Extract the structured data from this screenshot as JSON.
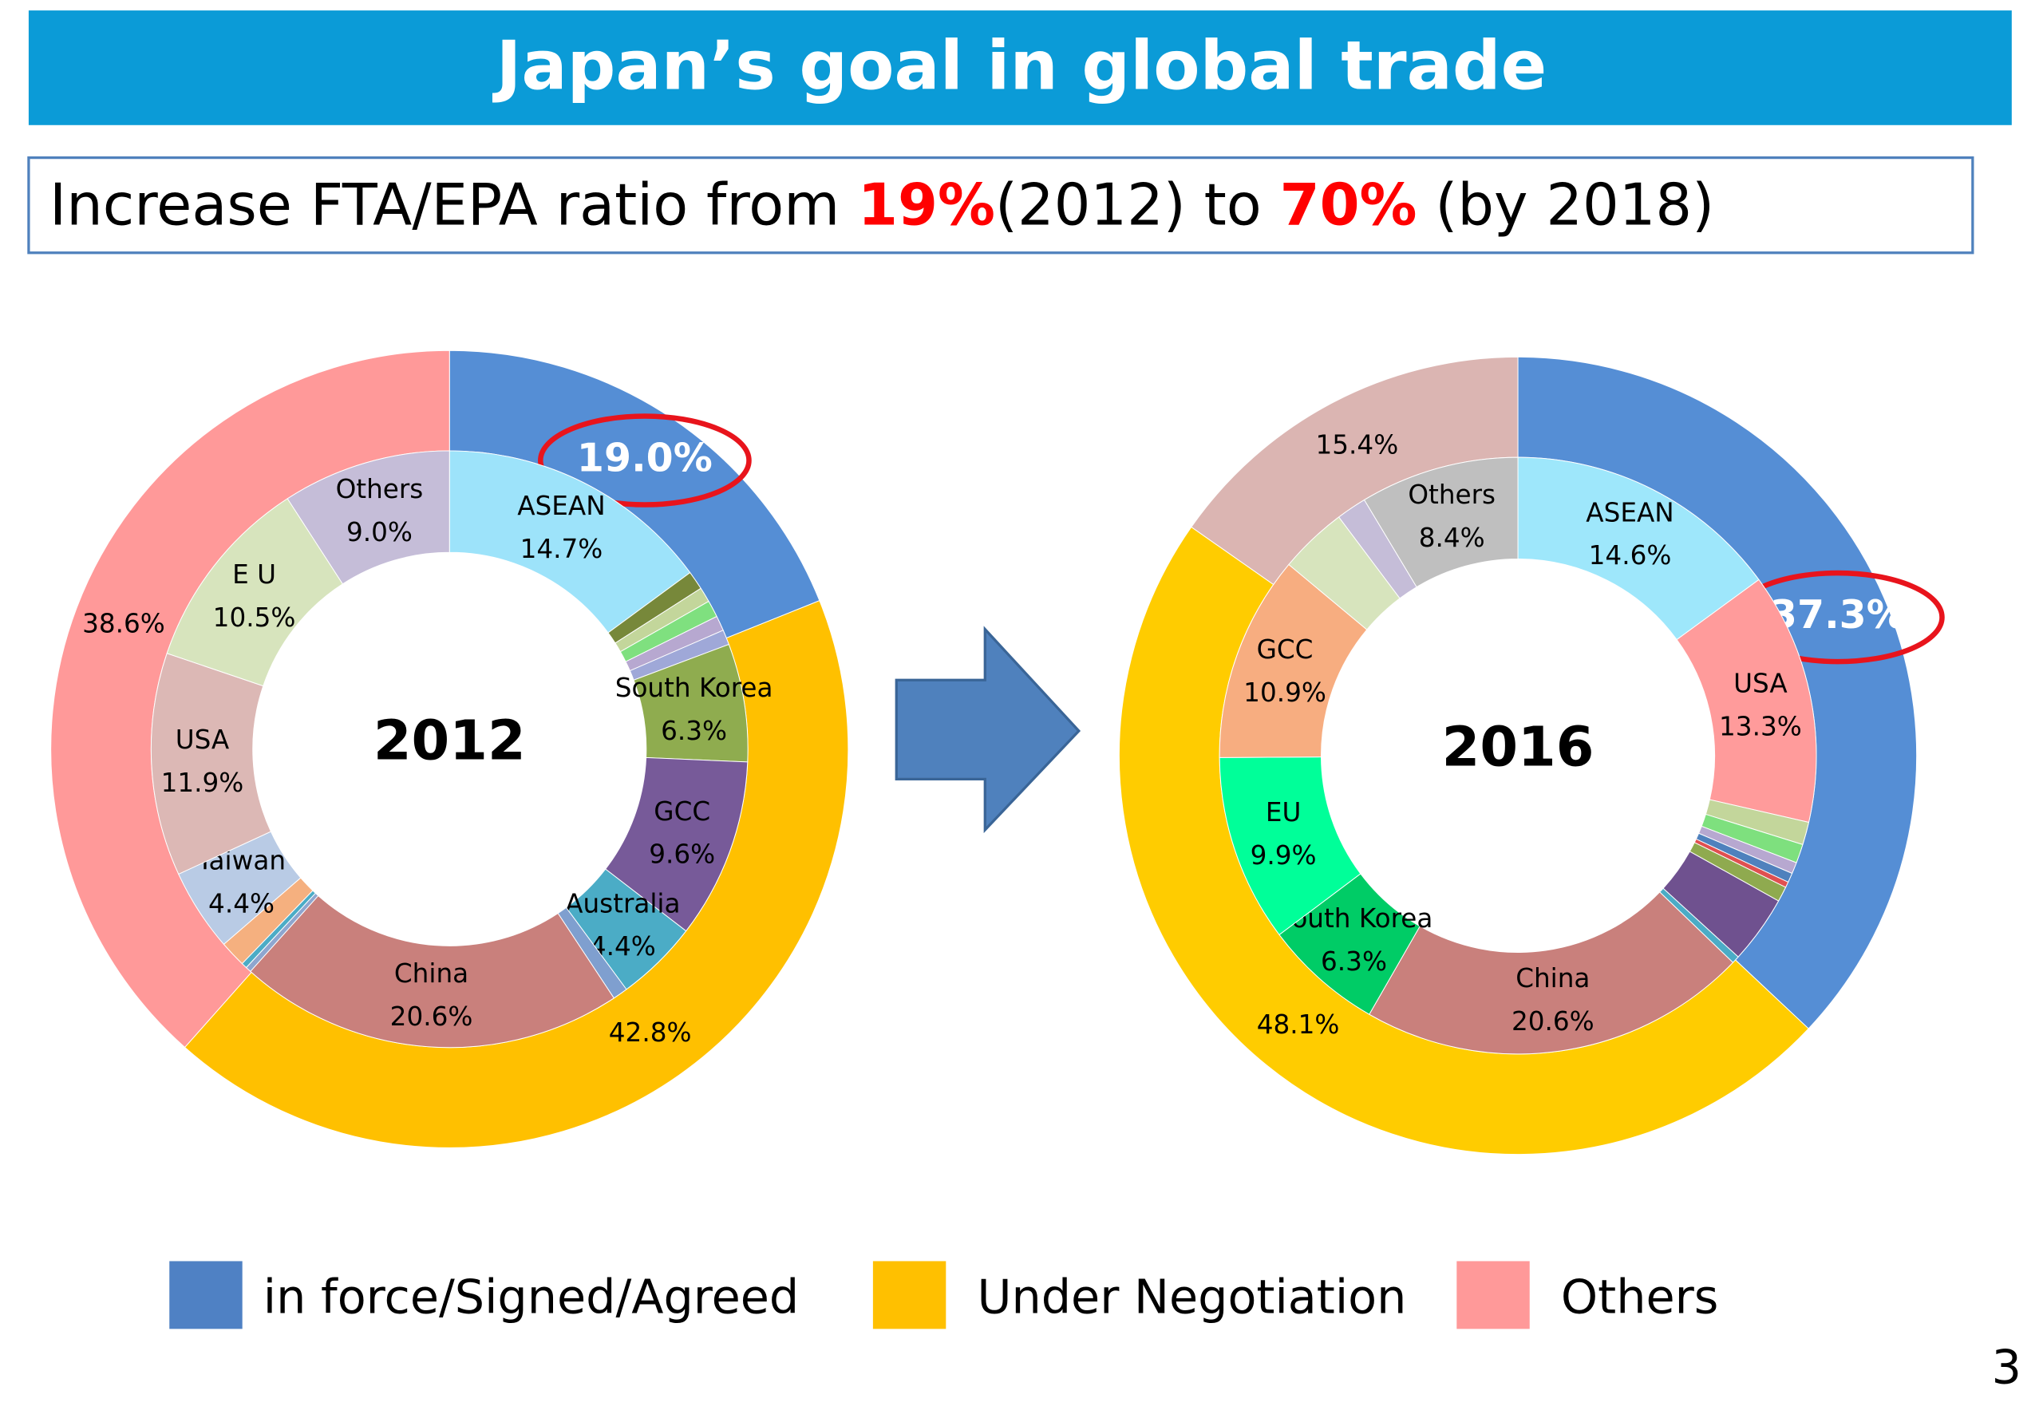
{
  "title": "Japan’s goal in global trade",
  "subtitle": [
    "Increase FTA/EPA ratio from ",
    "19%",
    "(2012) to ",
    "70%",
    " (by 2018)"
  ],
  "legend": {
    "names": [
      "in force/Signed/Agreed",
      "Under Negotiation",
      "Others"
    ],
    "colors": [
      "#4f81c4",
      "#ffc000",
      "#ff9999"
    ]
  },
  "page_number": "3",
  "chart_data": [
    {
      "type": "donut",
      "center_label": "2012",
      "outer": {
        "values": [
          19.0,
          42.8,
          38.6
        ],
        "value_labels": [
          "19.0%",
          "42.8%",
          "38.6%"
        ],
        "colors": [
          "#558ed5",
          "#ffc000",
          "#ff9999"
        ]
      },
      "inner": {
        "categories": [
          "ASEAN",
          null,
          null,
          null,
          null,
          null,
          "South Korea",
          "GCC",
          "Australia",
          null,
          "China",
          null,
          null,
          null,
          "Taiwan",
          "USA",
          "E U",
          "Others"
        ],
        "values": [
          14.7,
          1.0,
          0.8,
          0.9,
          0.8,
          0.8,
          6.3,
          9.6,
          4.4,
          0.8,
          20.6,
          0.3,
          0.3,
          1.4,
          4.4,
          11.9,
          10.5,
          9.0
        ],
        "value_labels": [
          "14.7%",
          null,
          null,
          null,
          null,
          null,
          "6.3%",
          "9.6%",
          "4.4%",
          null,
          "20.6%",
          null,
          null,
          null,
          "4.4%",
          "11.9%",
          "10.5%",
          "9.0%"
        ],
        "colors": [
          "#9de3fa",
          "#77883a",
          "#c3d69b",
          "#7fe07f",
          "#b7a8d0",
          "#9fa8d8",
          "#8fac4f",
          "#775a99",
          "#4bacc6",
          "#7f9fcf",
          "#c9807c",
          "#8ea6cf",
          "#4bacc6",
          "#f5b07f",
          "#b9cbe5",
          "#dcb8b5",
          "#d7e4bd",
          "#c5bdd8"
        ]
      }
    },
    {
      "type": "donut",
      "center_label": "2016",
      "outer": {
        "values": [
          37.3,
          48.1,
          15.4
        ],
        "value_labels": [
          "37.3%",
          "48.1%",
          "15.4%"
        ],
        "colors": [
          "#558ed5",
          "#ffcc00",
          "#dbb5b2"
        ]
      },
      "inner": {
        "categories": [
          "ASEAN",
          "USA",
          null,
          null,
          null,
          null,
          null,
          null,
          null,
          null,
          "China",
          "South Korea",
          "EU",
          "GCC",
          null,
          null,
          "Others"
        ],
        "values": [
          14.6,
          13.3,
          1.2,
          1.0,
          0.6,
          0.5,
          0.3,
          0.8,
          3.6,
          0.4,
          20.6,
          6.3,
          9.9,
          10.9,
          3.6,
          1.6,
          8.4
        ],
        "value_labels": [
          "14.6%",
          "13.3%",
          null,
          null,
          null,
          null,
          null,
          null,
          null,
          null,
          "20.6%",
          "6.3%",
          "9.9%",
          "10.9%",
          null,
          null,
          "8.4%"
        ],
        "colors": [
          "#9ee7fb",
          "#ff9b9b",
          "#c3d69b",
          "#7ee07e",
          "#b7a8d0",
          "#4f81bd",
          "#e05050",
          "#8faa4f",
          "#6f518f",
          "#4bacc6",
          "#c9807c",
          "#00cc66",
          "#00ff99",
          "#f7ad80",
          "#d7e4bd",
          "#c5bdd8",
          "#bfbfbf"
        ]
      }
    }
  ]
}
